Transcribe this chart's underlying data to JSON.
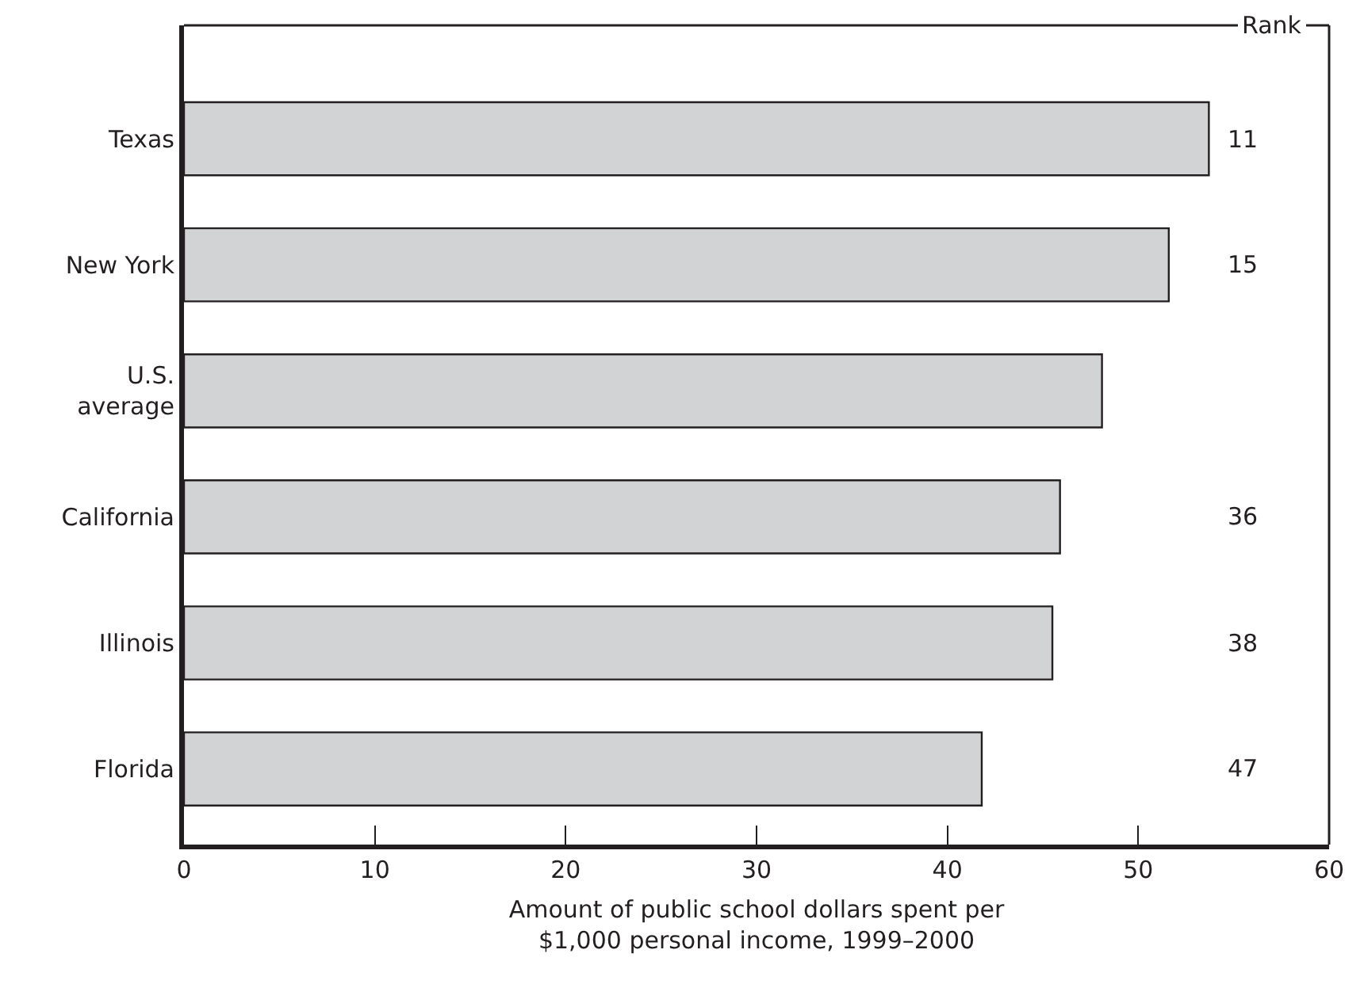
{
  "chart_data": {
    "type": "bar",
    "orientation": "horizontal",
    "categories": [
      "Texas",
      "New York",
      "U.S.\naverage",
      "California",
      "Illinois",
      "Florida"
    ],
    "values": [
      53.7,
      51.6,
      48.1,
      45.9,
      45.5,
      41.8
    ],
    "color": "#d1d3d4",
    "xlabel": "Amount of public school dollars spent per\n$1,000 personal income, 1999–2000",
    "xlim": [
      0,
      60
    ],
    "xticks": [
      0,
      10,
      20,
      30,
      40,
      50,
      60
    ],
    "annotations": [
      "Rank",
      "11",
      "15",
      "36",
      "38",
      "47"
    ]
  }
}
